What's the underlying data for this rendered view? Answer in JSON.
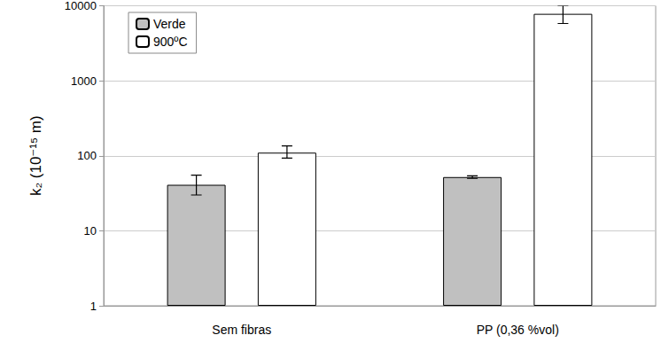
{
  "chart_data": {
    "type": "bar",
    "y_label": "k₂ (10⁻¹⁵ m)",
    "categories": [
      "Sem fibras",
      "PP (0,36 %vol)"
    ],
    "series": [
      {
        "name": "Verde",
        "color": "#c0c0c0",
        "values": [
          41,
          52
        ],
        "error_low": [
          30,
          50
        ],
        "error_high": [
          55,
          54
        ]
      },
      {
        "name": "900ºC",
        "color": "#ffffff",
        "values": [
          110,
          7800
        ],
        "error_low": [
          93,
          5800
        ],
        "error_high": [
          135,
          10000
        ]
      }
    ],
    "log": "y",
    "ylim": [
      1,
      10000
    ],
    "yticks": [
      1,
      10,
      100,
      1000,
      10000
    ],
    "grid": true,
    "legend": "upper left"
  }
}
